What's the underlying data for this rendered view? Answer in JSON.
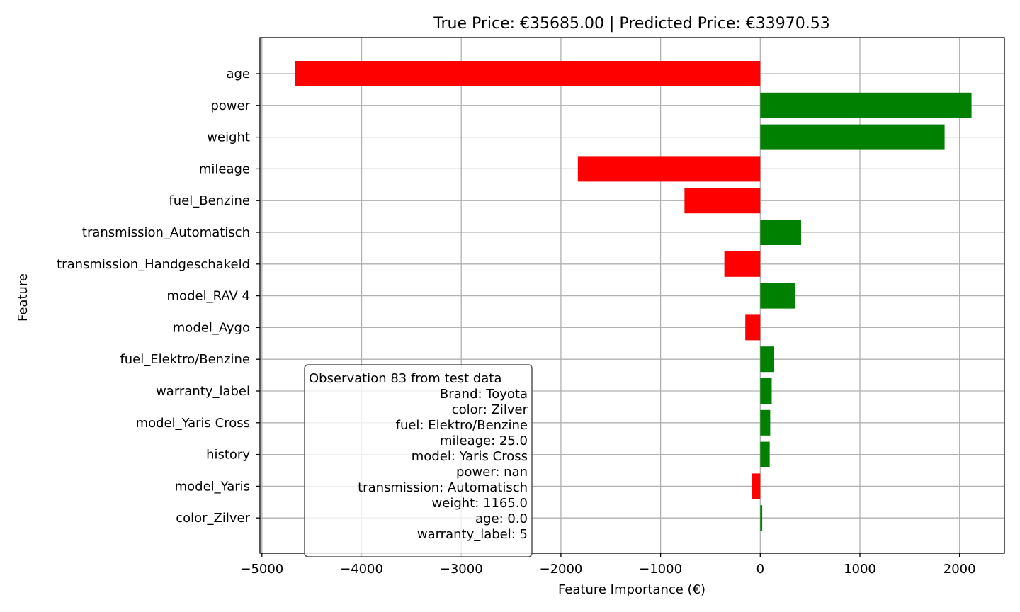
{
  "chart_data": {
    "type": "bar",
    "orientation": "horizontal",
    "title": "True Price: €35685.00 | Predicted Price: €33970.53",
    "xlabel": "Feature Importance (€)",
    "ylabel": "Feature",
    "xlim": [
      -5020,
      2450
    ],
    "xticks": [
      -5000,
      -4000,
      -3000,
      -2000,
      -1000,
      0,
      1000,
      2000
    ],
    "xtick_labels": [
      "−5000",
      "−4000",
      "−3000",
      "−2000",
      "−1000",
      "0",
      "1000",
      "2000"
    ],
    "grid": true,
    "categories": [
      "age",
      "power",
      "weight",
      "mileage",
      "fuel_Benzine",
      "transmission_Automatisch",
      "transmission_Handgeschakeld",
      "model_RAV 4",
      "model_Aygo",
      "fuel_Elektro/Benzine",
      "warranty_label",
      "model_Yaris Cross",
      "history",
      "model_Yaris",
      "color_Zilver"
    ],
    "values": [
      -4670,
      2120,
      1850,
      -1830,
      -760,
      410,
      -360,
      350,
      -150,
      140,
      115,
      100,
      95,
      -85,
      20
    ],
    "colors": {
      "positive": "#008000",
      "negative": "#ff0000",
      "grid": "#b0b0b0"
    },
    "annotation": {
      "lines": [
        "Observation 83 from test data",
        "Brand: Toyota",
        "color: Zilver",
        "fuel: Elektro/Benzine",
        "mileage: 25.0",
        "model: Yaris Cross",
        "power: nan",
        "transmission: Automatisch",
        "weight: 1165.0",
        "age: 0.0",
        "warranty_label: 5"
      ]
    }
  }
}
